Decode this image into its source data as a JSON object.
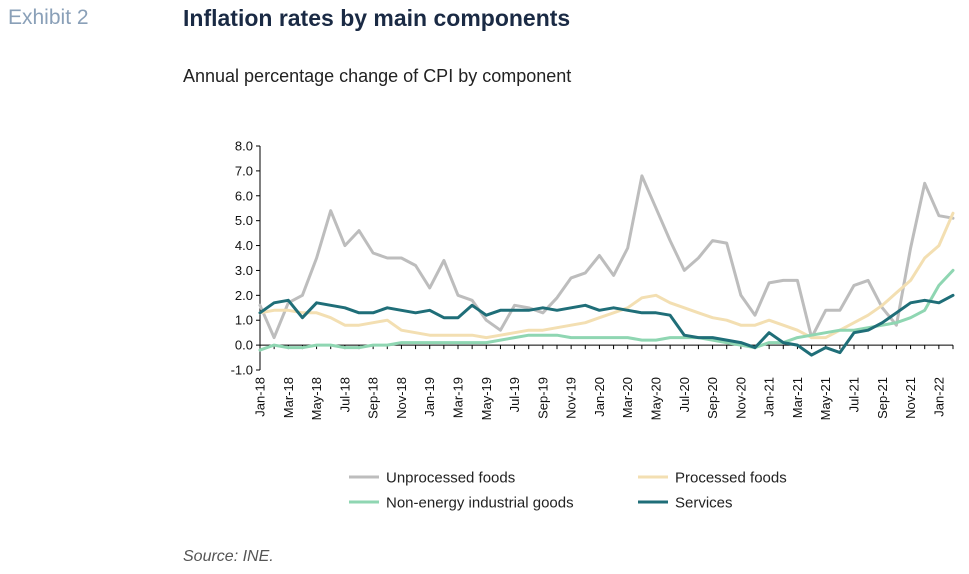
{
  "header": {
    "exhibit": "Exhibit 2",
    "title": "Inflation rates by main components",
    "subtitle": "Annual percentage change of CPI by component"
  },
  "footer": {
    "source": "Source: INE."
  },
  "chart_data": {
    "type": "line",
    "title": "Inflation rates by main components",
    "subtitle": "Annual percentage change of CPI by component",
    "xlabel": "",
    "ylabel": "",
    "ylim": [
      -1.0,
      8.0
    ],
    "yticks": [
      "8.0",
      "7.0",
      "6.0",
      "5.0",
      "4.0",
      "3.0",
      "2.0",
      "1.0",
      "0.0",
      "-1.0"
    ],
    "grid": false,
    "legend_position": "bottom",
    "x": [
      "Jan-18",
      "Feb-18",
      "Mar-18",
      "Apr-18",
      "May-18",
      "Jun-18",
      "Jul-18",
      "Aug-18",
      "Sep-18",
      "Oct-18",
      "Nov-18",
      "Dec-18",
      "Jan-19",
      "Feb-19",
      "Mar-19",
      "Apr-19",
      "May-19",
      "Jun-19",
      "Jul-19",
      "Aug-19",
      "Sep-19",
      "Oct-19",
      "Nov-19",
      "Dec-19",
      "Jan-20",
      "Feb-20",
      "Mar-20",
      "Apr-20",
      "May-20",
      "Jun-20",
      "Jul-20",
      "Aug-20",
      "Sep-20",
      "Oct-20",
      "Nov-20",
      "Dec-20",
      "Jan-21",
      "Feb-21",
      "Mar-21",
      "Apr-21",
      "May-21",
      "Jun-21",
      "Jul-21",
      "Aug-21",
      "Sep-21",
      "Oct-21",
      "Nov-21",
      "Dec-21",
      "Jan-22",
      "Feb-22"
    ],
    "x_tick_labels": [
      "Jan-18",
      "Mar-18",
      "May-18",
      "Jul-18",
      "Sep-18",
      "Nov-18",
      "Jan-19",
      "Mar-19",
      "May-19",
      "Jul-19",
      "Sep-19",
      "Nov-19",
      "Jan-20",
      "Mar-20",
      "May-20",
      "Jul-20",
      "Sep-20",
      "Nov-20",
      "Jan-21",
      "Mar-21",
      "May-21",
      "Jul-21",
      "Sep-21",
      "Nov-21",
      "Jan-22"
    ],
    "series": [
      {
        "name": "Unprocessed foods",
        "color": "#bdbdbd",
        "values": [
          1.6,
          0.3,
          1.7,
          2.0,
          3.5,
          5.4,
          4.0,
          4.6,
          3.7,
          3.5,
          3.5,
          3.2,
          2.3,
          3.4,
          2.0,
          1.8,
          1.0,
          0.6,
          1.6,
          1.5,
          1.3,
          1.9,
          2.7,
          2.9,
          3.6,
          2.8,
          3.9,
          6.8,
          5.5,
          4.2,
          3.0,
          3.5,
          4.2,
          4.1,
          2.0,
          1.2,
          2.5,
          2.6,
          2.6,
          0.3,
          1.4,
          1.4,
          2.4,
          2.6,
          1.5,
          0.8,
          3.9,
          6.5,
          5.2,
          5.1
        ]
      },
      {
        "name": "Processed foods",
        "color": "#f3dfb2",
        "values": [
          1.3,
          1.4,
          1.4,
          1.3,
          1.3,
          1.1,
          0.8,
          0.8,
          0.9,
          1.0,
          0.6,
          0.5,
          0.4,
          0.4,
          0.4,
          0.4,
          0.3,
          0.4,
          0.5,
          0.6,
          0.6,
          0.7,
          0.8,
          0.9,
          1.1,
          1.3,
          1.5,
          1.9,
          2.0,
          1.7,
          1.5,
          1.3,
          1.1,
          1.0,
          0.8,
          0.8,
          1.0,
          0.8,
          0.6,
          0.3,
          0.3,
          0.6,
          0.9,
          1.2,
          1.6,
          2.1,
          2.6,
          3.5,
          4.0,
          5.3
        ]
      },
      {
        "name": "Non-energy industrial goods",
        "color": "#8fd6b2",
        "values": [
          -0.2,
          0.0,
          -0.1,
          -0.1,
          0.0,
          0.0,
          -0.1,
          -0.1,
          0.0,
          0.0,
          0.1,
          0.1,
          0.1,
          0.1,
          0.1,
          0.1,
          0.1,
          0.2,
          0.3,
          0.4,
          0.4,
          0.4,
          0.3,
          0.3,
          0.3,
          0.3,
          0.3,
          0.2,
          0.2,
          0.3,
          0.3,
          0.3,
          0.2,
          0.1,
          0.0,
          -0.1,
          0.1,
          0.1,
          0.3,
          0.4,
          0.5,
          0.6,
          0.6,
          0.7,
          0.8,
          0.9,
          1.1,
          1.4,
          2.4,
          3.0
        ]
      },
      {
        "name": "Services",
        "color": "#1f6e78",
        "values": [
          1.3,
          1.7,
          1.8,
          1.1,
          1.7,
          1.6,
          1.5,
          1.3,
          1.3,
          1.5,
          1.4,
          1.3,
          1.4,
          1.1,
          1.1,
          1.6,
          1.2,
          1.4,
          1.4,
          1.4,
          1.5,
          1.4,
          1.5,
          1.6,
          1.4,
          1.5,
          1.4,
          1.3,
          1.3,
          1.2,
          0.4,
          0.3,
          0.3,
          0.2,
          0.1,
          -0.1,
          0.5,
          0.1,
          0.0,
          -0.4,
          -0.1,
          -0.3,
          0.5,
          0.6,
          0.9,
          1.3,
          1.7,
          1.8,
          1.7,
          2.0
        ]
      }
    ]
  }
}
